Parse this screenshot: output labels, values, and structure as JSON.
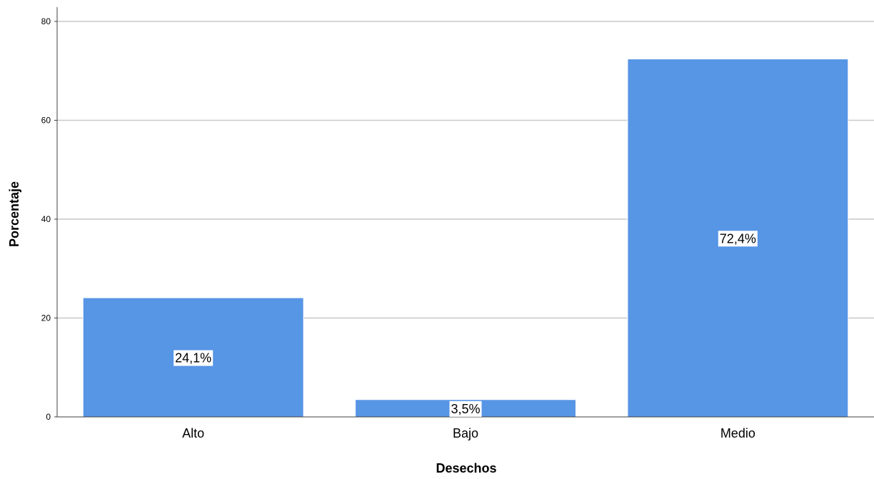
{
  "chart_data": {
    "type": "bar",
    "categories": [
      "Alto",
      "Bajo",
      "Medio"
    ],
    "values": [
      24.1,
      3.5,
      72.4
    ],
    "data_labels": [
      "24,1%",
      "3,5%",
      "72,4%"
    ],
    "title": "",
    "xlabel": "Desechos",
    "ylabel": "Porcentaje",
    "ylim": [
      0,
      80
    ],
    "yticks": [
      0,
      20,
      40,
      60,
      80
    ],
    "ytick_labels": [
      "0",
      "20",
      "40",
      "60",
      "80"
    ],
    "grid": "horizontal",
    "legend": "none",
    "colors": {
      "bar": "#5795e5",
      "bar_edge": "#ffffff",
      "grid": "#c8c8c8",
      "axis": "#404040",
      "label_box": "#ffffff"
    }
  }
}
